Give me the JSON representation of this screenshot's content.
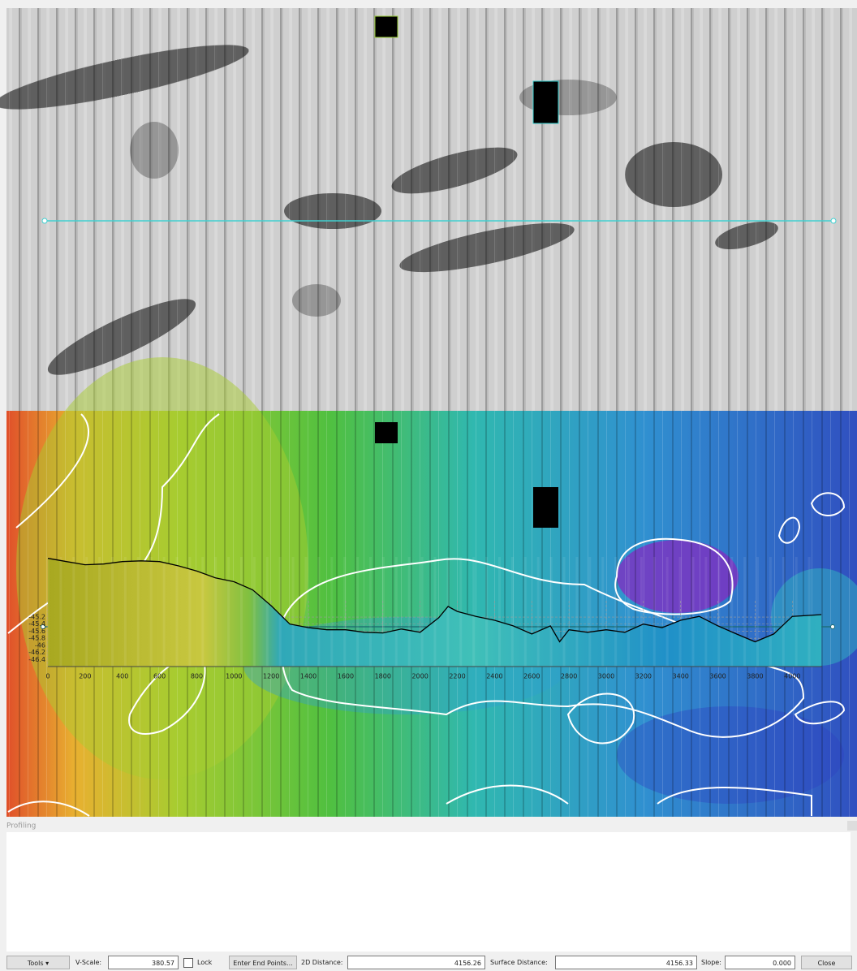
{
  "window": {
    "panel_title": "Profiling"
  },
  "chart_data": {
    "type": "area",
    "x": [
      0,
      100,
      200,
      300,
      400,
      500,
      600,
      700,
      800,
      900,
      1000,
      1100,
      1200,
      1300,
      1400,
      1500,
      1600,
      1700,
      1800,
      1900,
      2000,
      2100,
      2150,
      2200,
      2300,
      2400,
      2500,
      2600,
      2700,
      2750,
      2800,
      2900,
      3000,
      3100,
      3200,
      3300,
      3400,
      3500,
      3600,
      3700,
      3800,
      3900,
      4000,
      4100,
      4156
    ],
    "values": [
      -43.54,
      -43.63,
      -43.72,
      -43.7,
      -43.63,
      -43.61,
      -43.63,
      -43.75,
      -43.9,
      -44.09,
      -44.2,
      -44.43,
      -44.88,
      -45.4,
      -45.5,
      -45.56,
      -45.56,
      -45.63,
      -45.65,
      -45.54,
      -45.63,
      -45.22,
      -44.9,
      -45.04,
      -45.18,
      -45.29,
      -45.45,
      -45.68,
      -45.45,
      -45.9,
      -45.56,
      -45.63,
      -45.56,
      -45.63,
      -45.4,
      -45.5,
      -45.29,
      -45.18,
      -45.45,
      -45.68,
      -45.9,
      -45.68,
      -45.18,
      -45.15,
      -45.13
    ],
    "color": "#000000",
    "xlim": [
      0,
      4160
    ],
    "ylim": [
      -46.6,
      -43.5
    ],
    "xticks": [
      0,
      200,
      400,
      600,
      800,
      1000,
      1200,
      1400,
      1600,
      1800,
      2000,
      2200,
      2400,
      2600,
      2800,
      3000,
      3200,
      3400,
      3600,
      3800,
      4000
    ],
    "yticks": [
      -45.2,
      -45.4,
      -45.6,
      -45.8,
      -46.0,
      -46.2,
      -46.4
    ],
    "grid": true
  },
  "toolbar": {
    "tools": "Tools",
    "v_scale_label": "V-Scale:",
    "v_scale": "380.57",
    "lock": "Lock",
    "enter_end_points": "Enter End Points...",
    "distance_2d_label": "2D Distance:",
    "distance_2d": "4156.26",
    "surface_distance_label": "Surface Distance:",
    "surface_distance": "4156.33",
    "slope_label": "Slope:",
    "slope": "0.000",
    "close": "Close"
  }
}
